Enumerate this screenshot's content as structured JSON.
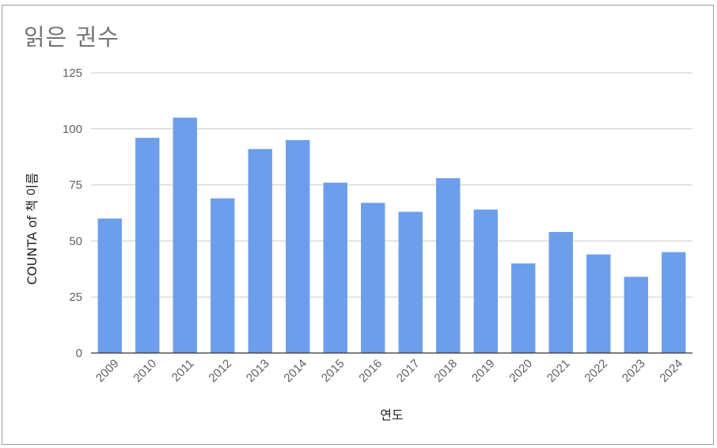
{
  "chart_data": {
    "type": "bar",
    "title": "읽은 권수",
    "xlabel": "연도",
    "ylabel": "COUNTA of 책 이름",
    "categories": [
      "2009",
      "2010",
      "2011",
      "2012",
      "2013",
      "2014",
      "2015",
      "2016",
      "2017",
      "2018",
      "2019",
      "2020",
      "2021",
      "2022",
      "2023",
      "2024"
    ],
    "series": [
      {
        "values": [
          60,
          96,
          105,
          69,
          91,
          95,
          76,
          67,
          63,
          78,
          64,
          40,
          54,
          44,
          34,
          45
        ]
      }
    ],
    "ylim": [
      0,
      125
    ],
    "yticks": [
      "0",
      "25",
      "50",
      "75",
      "100",
      "125"
    ],
    "grid": true,
    "legend": "none",
    "bar_color": "#6d9eeb"
  }
}
